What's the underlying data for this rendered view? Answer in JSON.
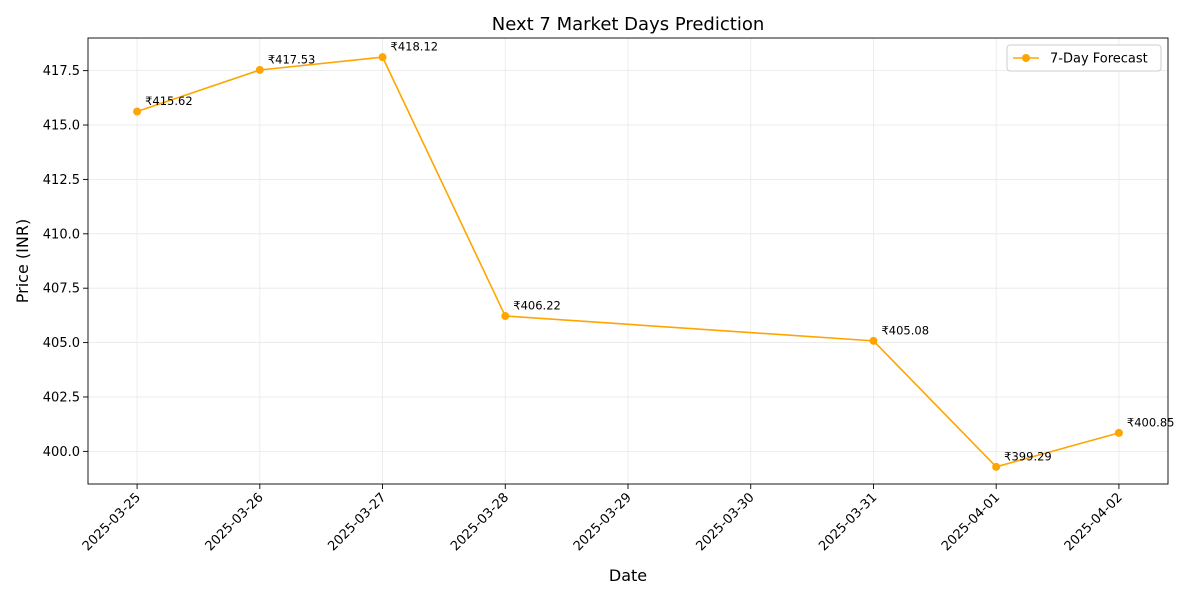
{
  "chart_data": {
    "type": "line",
    "title": "Next 7 Market Days Prediction",
    "xlabel": "Date",
    "ylabel": "Price (INR)",
    "x_ticks": [
      "2025-03-25",
      "2025-03-26",
      "2025-03-27",
      "2025-03-28",
      "2025-03-29",
      "2025-03-30",
      "2025-03-31",
      "2025-04-01",
      "2025-04-02"
    ],
    "xlim": [
      "2025-03-24.6",
      "2025-04-02.4"
    ],
    "y_ticks": [
      "400.0",
      "402.5",
      "405.0",
      "407.5",
      "410.0",
      "412.5",
      "415.0",
      "417.5"
    ],
    "ylim": [
      398.5,
      419.0
    ],
    "grid": true,
    "legend_position": "top-right",
    "series": [
      {
        "name": "7-Day Forecast",
        "color": "#FFA500",
        "marker": "circle",
        "x": [
          "2025-03-25",
          "2025-03-26",
          "2025-03-27",
          "2025-03-28",
          "2025-03-31",
          "2025-04-01",
          "2025-04-02"
        ],
        "y": [
          415.62,
          417.53,
          418.12,
          406.22,
          405.08,
          399.29,
          400.85
        ],
        "labels": [
          "₹415.62",
          "₹417.53",
          "₹418.12",
          "₹406.22",
          "₹405.08",
          "₹399.29",
          "₹400.85"
        ]
      }
    ]
  }
}
